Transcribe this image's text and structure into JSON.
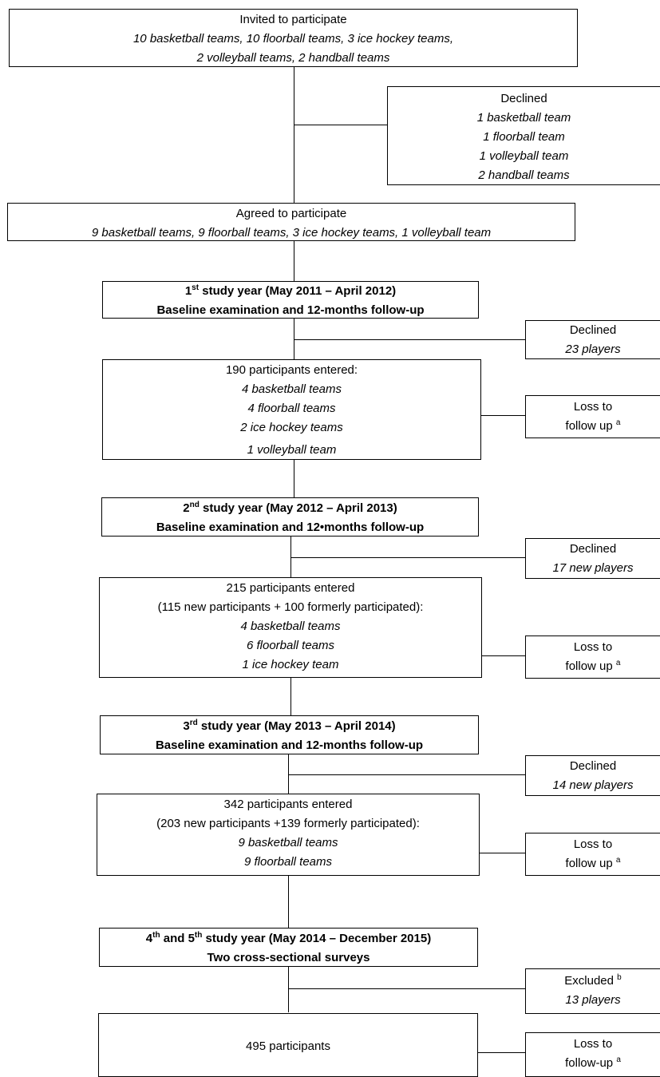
{
  "invited": {
    "title": "Invited to participate",
    "line1": "10 basketball teams, 10 floorball teams, 3 ice hockey teams,",
    "line2": "2 volleyball teams, 2 handball teams"
  },
  "declined_teams": {
    "title": "Declined",
    "items": [
      "1 basketball team",
      "1 floorball team",
      "1 volleyball team",
      "2 handball teams"
    ]
  },
  "agreed": {
    "title": "Agreed to participate",
    "line1": "9 basketball teams, 9 floorball teams, 3 ice hockey teams, 1 volleyball team"
  },
  "year1": {
    "title_num": "1",
    "title_sup": "st",
    "title_rest": " study year (May 2011 – April 2012)",
    "subtitle": "Baseline examination and 12-months  follow-up",
    "declined_title": "Declined",
    "declined_value": "23 players",
    "entered_title": "190 participants entered:",
    "teams": [
      "4 basketball teams",
      "4 floorball teams",
      "2 ice hockey teams",
      "1 volleyball team"
    ],
    "loss_line1": "Loss to",
    "loss_line2": "follow up",
    "loss_sup": "a"
  },
  "year2": {
    "title_num": "2",
    "title_sup": "nd",
    "title_rest": " study year (May 2012 – April 2013)",
    "subtitle": "Baseline examination and 12•months follow-up",
    "declined_title": "Declined",
    "declined_value": "17 new players",
    "entered_title": "215 participants entered",
    "entered_detail": "(115 new participants + 100 formerly participated):",
    "teams": [
      "4 basketball teams",
      "6  floorball teams",
      "1 ice hockey team"
    ],
    "loss_line1": "Loss to",
    "loss_line2": "follow up",
    "loss_sup": "a"
  },
  "year3": {
    "title_num": "3",
    "title_sup": "rd",
    "title_rest": " study year (May 2013 – April 2014)",
    "subtitle": "Baseline examination and 12-months follow-up",
    "declined_title": "Declined",
    "declined_value": "14 new players",
    "entered_title": "342 participants entered",
    "entered_detail": "(203 new participants +139 formerly participated):",
    "teams": [
      "9  basketball teams",
      "9 floorball teams"
    ],
    "loss_line1": "Loss to",
    "loss_line2": "follow up",
    "loss_sup": "a"
  },
  "year45": {
    "title_num1": "4",
    "title_sup1": "th",
    "title_mid": " and 5",
    "title_sup2": "th",
    "title_rest": " study year (May 2014 – December 2015)",
    "subtitle": "Two cross-sectional surveys",
    "excluded_title": "Excluded",
    "excluded_sup": "b",
    "excluded_value": "13 players",
    "participants": "495 participants",
    "loss_line1": "Loss to",
    "loss_line2": "follow-up",
    "loss_sup": "a"
  }
}
